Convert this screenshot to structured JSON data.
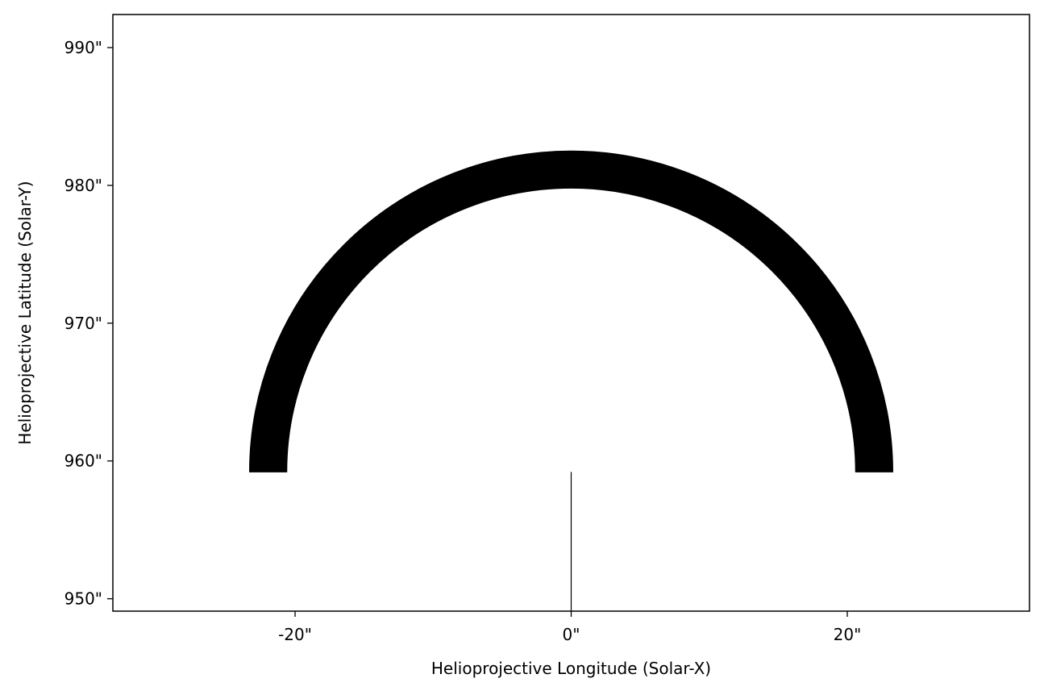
{
  "chart_data": {
    "type": "line",
    "xlabel": "Helioprojective Longitude (Solar-X)",
    "ylabel": "Helioprojective Latitude (Solar-Y)",
    "xlim": [
      -33.2,
      33.2
    ],
    "ylim": [
      949.1,
      992.4
    ],
    "x_ticks": [
      {
        "value": -20,
        "label": "-20\""
      },
      {
        "value": 0,
        "label": "0\""
      },
      {
        "value": 20,
        "label": "20\""
      }
    ],
    "y_ticks": [
      {
        "value": 950,
        "label": "950\""
      },
      {
        "value": 960,
        "label": "960\""
      },
      {
        "value": 970,
        "label": "970\""
      },
      {
        "value": 980,
        "label": "980\""
      },
      {
        "value": 990,
        "label": "990\""
      }
    ],
    "series": [
      {
        "kind": "arc",
        "center": [
          0,
          959.2
        ],
        "inner_radius": 20.6,
        "outer_radius": 23.3,
        "color": "#000000"
      },
      {
        "kind": "line",
        "x": [
          0,
          0
        ],
        "y": [
          949.1,
          959.2
        ],
        "color": "#000000"
      }
    ],
    "grid": false,
    "legend": "none"
  }
}
